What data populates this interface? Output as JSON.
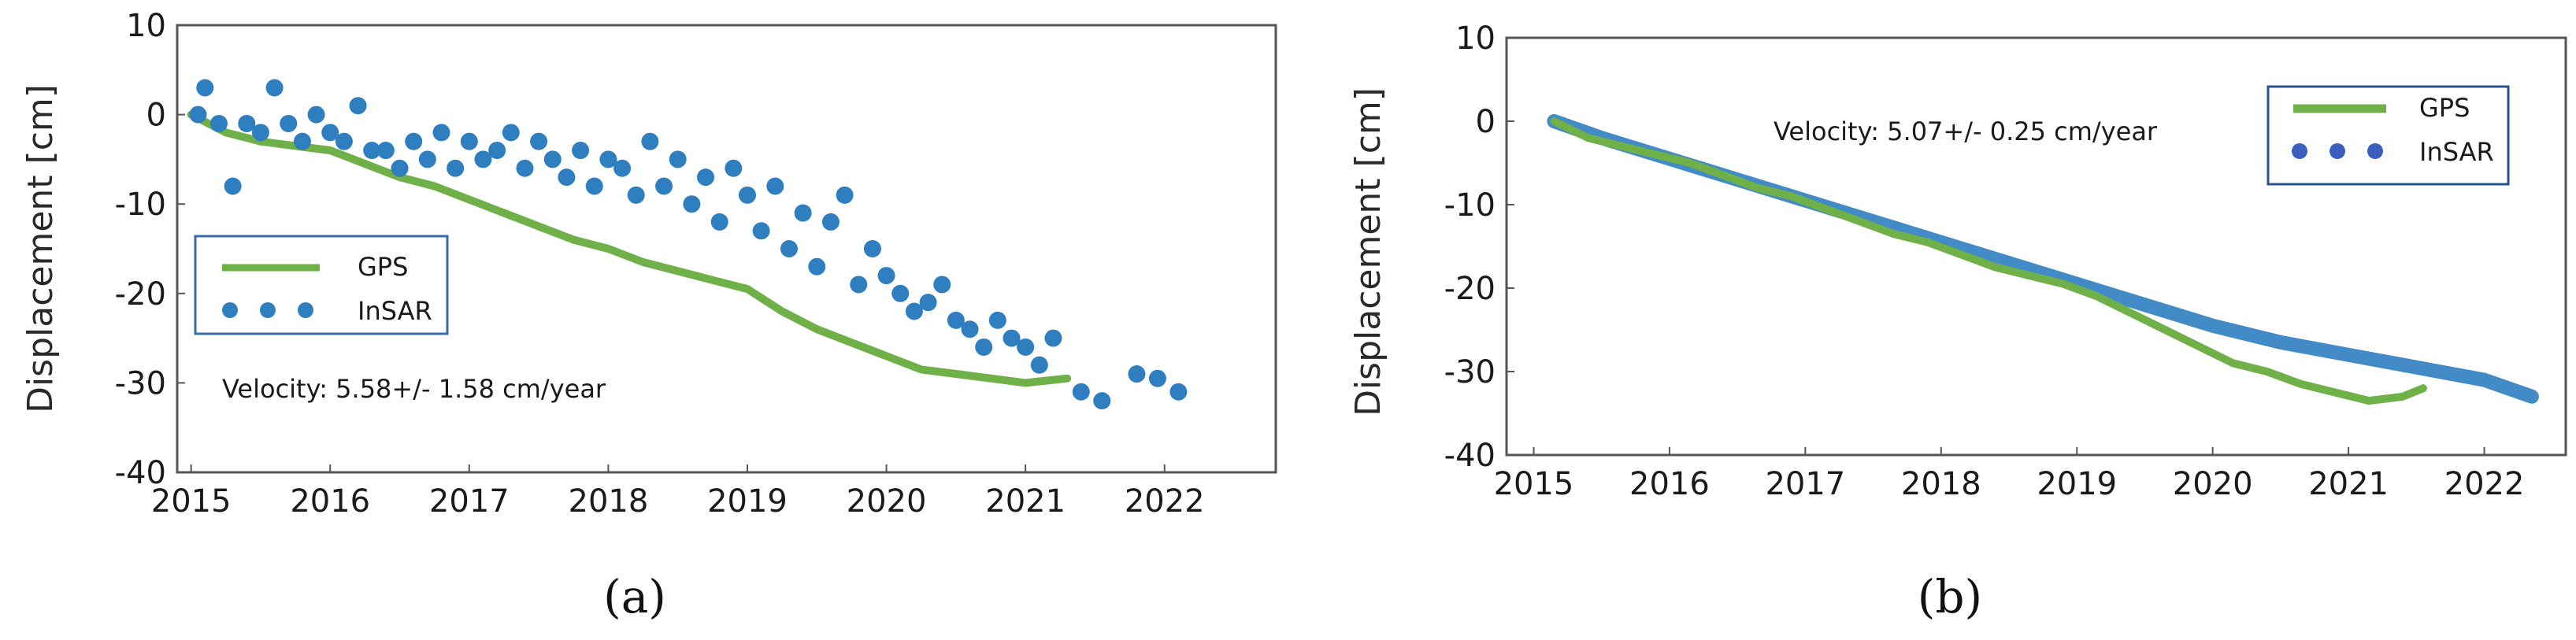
{
  "colors": {
    "gps": "#6fb048",
    "insar": "#2e7ec0",
    "legend_box_a": "#3b6aa8",
    "legend_box_b": "#2c4f8f"
  },
  "chart_data": [
    {
      "type": "scatter",
      "panel_label": "(a)",
      "ylabel": "Displacement [cm]",
      "xlim": [
        2014.9,
        2022.8
      ],
      "ylim": [
        -40,
        10
      ],
      "xticks": [
        2015,
        2016,
        2017,
        2018,
        2019,
        2020,
        2021,
        2022
      ],
      "yticks": [
        10,
        0,
        -10,
        -20,
        -30,
        -40
      ],
      "ytick_labels": [
        "10",
        "0",
        "-10",
        "-20",
        "-30",
        "-40"
      ],
      "grid": false,
      "legend_position": "middle-left",
      "annotation": "Velocity: 5.58+/- 1.58 cm/year",
      "series": [
        {
          "name": "GPS",
          "style": "line",
          "x": [
            2015.0,
            2015.25,
            2015.5,
            2015.75,
            2016.0,
            2016.25,
            2016.5,
            2016.75,
            2017.0,
            2017.25,
            2017.5,
            2017.75,
            2018.0,
            2018.25,
            2018.5,
            2018.75,
            2019.0,
            2019.25,
            2019.5,
            2019.75,
            2020.0,
            2020.25,
            2020.5,
            2020.75,
            2021.0,
            2021.3
          ],
          "y": [
            0,
            -2,
            -3,
            -3.5,
            -4,
            -5.5,
            -7,
            -8,
            -9.5,
            -11,
            -12.5,
            -14,
            -15,
            -16.5,
            -17.5,
            -18.5,
            -19.5,
            -22,
            -24,
            -25.5,
            -27,
            -28.5,
            -29,
            -29.5,
            -30,
            -29.5
          ]
        },
        {
          "name": "InSAR",
          "style": "points",
          "x": [
            2015.05,
            2015.1,
            2015.2,
            2015.3,
            2015.4,
            2015.5,
            2015.6,
            2015.7,
            2015.8,
            2015.9,
            2016.0,
            2016.1,
            2016.2,
            2016.3,
            2016.4,
            2016.5,
            2016.6,
            2016.7,
            2016.8,
            2016.9,
            2017.0,
            2017.1,
            2017.2,
            2017.3,
            2017.4,
            2017.5,
            2017.6,
            2017.7,
            2017.8,
            2017.9,
            2018.0,
            2018.1,
            2018.2,
            2018.3,
            2018.4,
            2018.5,
            2018.6,
            2018.7,
            2018.8,
            2018.9,
            2019.0,
            2019.1,
            2019.2,
            2019.3,
            2019.4,
            2019.5,
            2019.6,
            2019.7,
            2019.8,
            2019.9,
            2020.0,
            2020.1,
            2020.2,
            2020.3,
            2020.4,
            2020.5,
            2020.6,
            2020.7,
            2020.8,
            2020.9,
            2021.0,
            2021.1,
            2021.2,
            2021.4,
            2021.55,
            2021.8,
            2021.95,
            2022.1
          ],
          "y": [
            0,
            3,
            -1,
            -8,
            -1,
            -2,
            3,
            -1,
            -3,
            0,
            -2,
            -3,
            1,
            -4,
            -4,
            -6,
            -3,
            -5,
            -2,
            -6,
            -3,
            -5,
            -4,
            -2,
            -6,
            -3,
            -5,
            -7,
            -4,
            -8,
            -5,
            -6,
            -9,
            -3,
            -8,
            -5,
            -10,
            -7,
            -12,
            -6,
            -9,
            -13,
            -8,
            -15,
            -11,
            -17,
            -12,
            -9,
            -19,
            -15,
            -18,
            -20,
            -22,
            -21,
            -19,
            -23,
            -24,
            -26,
            -23,
            -25,
            -26,
            -28,
            -25,
            -31,
            -32,
            -29,
            -29.5,
            -31
          ]
        }
      ]
    },
    {
      "type": "scatter",
      "panel_label": "(b)",
      "ylabel": "Displacement [cm]",
      "xlim": [
        2014.8,
        2022.6
      ],
      "ylim": [
        -40,
        10
      ],
      "xticks": [
        2015,
        2016,
        2017,
        2018,
        2019,
        2020,
        2021,
        2022
      ],
      "yticks": [
        10,
        0,
        -10,
        -20,
        -30,
        -40
      ],
      "ytick_labels": [
        "10",
        "0",
        "-10",
        "-20",
        "-30",
        "-40"
      ],
      "grid": false,
      "legend_position": "top-right",
      "annotation": "Velocity: 5.07+/- 0.25 cm/year",
      "series": [
        {
          "name": "GPS",
          "style": "line",
          "x": [
            2015.15,
            2015.4,
            2015.65,
            2015.9,
            2016.15,
            2016.4,
            2016.65,
            2016.9,
            2017.15,
            2017.4,
            2017.65,
            2017.9,
            2018.15,
            2018.4,
            2018.65,
            2018.9,
            2019.15,
            2019.4,
            2019.65,
            2019.9,
            2020.15,
            2020.4,
            2020.65,
            2020.9,
            2021.15,
            2021.4,
            2021.55
          ],
          "y": [
            0,
            -2,
            -3,
            -4,
            -5,
            -6.5,
            -8,
            -9,
            -10.5,
            -12,
            -13.5,
            -14.5,
            -16,
            -17.5,
            -18.5,
            -19.5,
            -21,
            -23,
            -25,
            -27,
            -29,
            -30,
            -31.5,
            -32.5,
            -33.5,
            -33,
            -32
          ]
        },
        {
          "name": "InSAR",
          "style": "band",
          "x": [
            2015.15,
            2015.5,
            2016.0,
            2016.5,
            2017.0,
            2017.5,
            2018.0,
            2018.5,
            2019.0,
            2019.5,
            2020.0,
            2020.5,
            2021.0,
            2021.5,
            2022.0,
            2022.35
          ],
          "y": [
            0,
            -2,
            -4.5,
            -7,
            -9.5,
            -12,
            -14.5,
            -17,
            -19.5,
            -22,
            -24.5,
            -26.5,
            -28,
            -29.5,
            -31,
            -33
          ]
        }
      ]
    }
  ]
}
